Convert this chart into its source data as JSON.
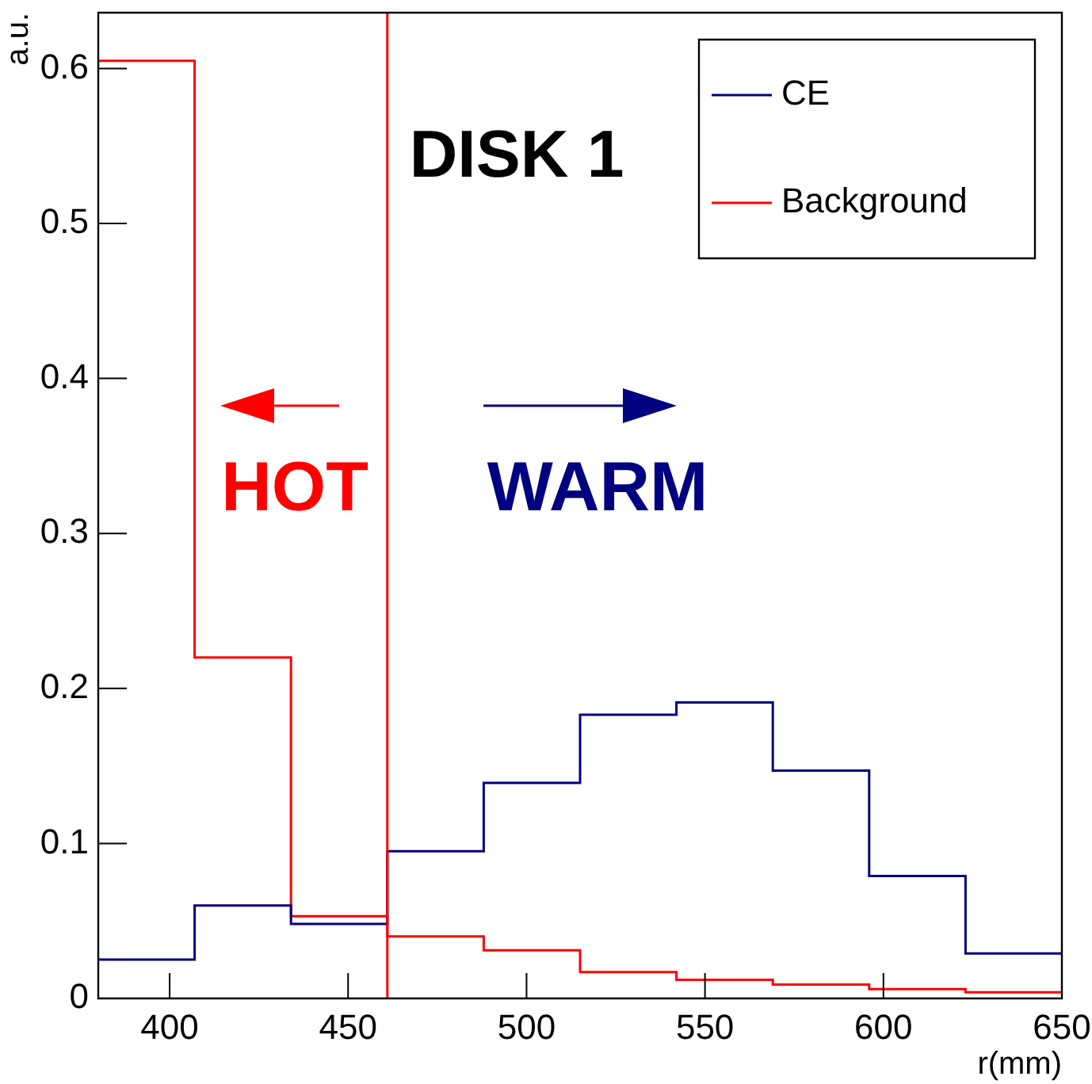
{
  "chart_data": {
    "type": "histogram",
    "title": "DISK 1",
    "xlabel": "r(mm)",
    "ylabel": "a.u.",
    "bins": [
      380,
      407,
      434,
      461,
      488,
      515,
      542,
      569,
      596,
      623,
      650
    ],
    "series": [
      {
        "name": "CE",
        "color": "#000080",
        "values": [
          0.025,
          0.06,
          0.048,
          0.095,
          0.139,
          0.183,
          0.191,
          0.147,
          0.079,
          0.029
        ]
      },
      {
        "name": "Background",
        "color": "#ff0000",
        "values": [
          0.605,
          0.22,
          0.053,
          0.04,
          0.031,
          0.017,
          0.012,
          0.009,
          0.006,
          0.004
        ]
      }
    ],
    "xlim": [
      380,
      650
    ],
    "xticks": [
      400,
      450,
      500,
      550,
      600,
      650
    ],
    "ylim": [
      0,
      0.636
    ],
    "yticks": [
      0,
      0.1,
      0.2,
      0.3,
      0.4,
      0.5,
      0.6
    ],
    "ref_lines": [
      {
        "axis": "x",
        "value": 461,
        "color": "#ff0000"
      }
    ],
    "annotations": [
      "HOT",
      "WARM"
    ],
    "legend": "top right",
    "grid": false
  }
}
